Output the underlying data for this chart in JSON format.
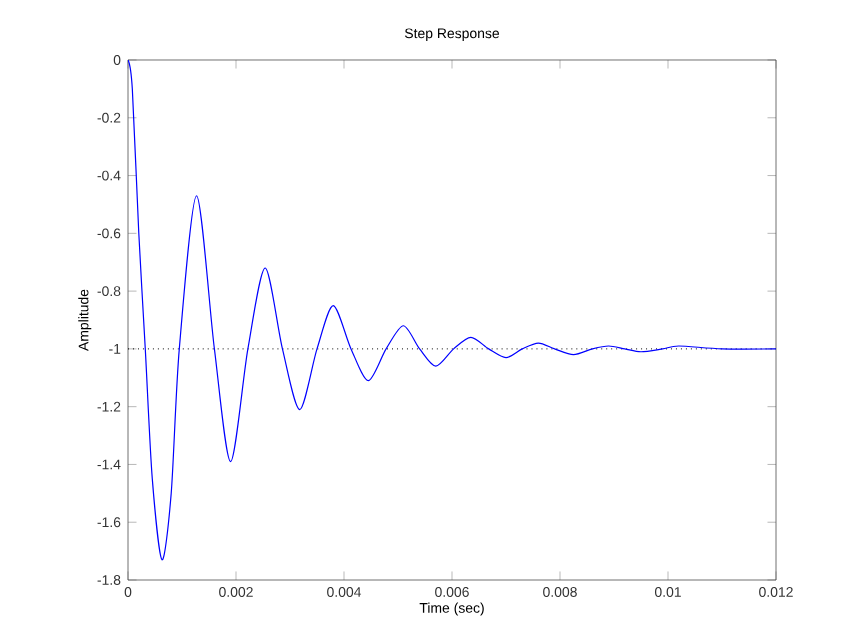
{
  "chart_data": {
    "type": "line",
    "title": "Step Response",
    "xlabel": "Time (sec)",
    "ylabel": "Amplitude",
    "xlim": [
      0,
      0.012
    ],
    "xticks": [
      0,
      0.002,
      0.004,
      0.006,
      0.008,
      0.01,
      0.012
    ],
    "ylim": [
      -1.8,
      0
    ],
    "yticks": [
      -1.8,
      -1.6,
      -1.4,
      -1.2,
      -1,
      -0.8,
      -0.6,
      -0.4,
      -0.2,
      0
    ],
    "grid": false,
    "marker": "none",
    "line_style": "solid",
    "ref_lines": [
      {
        "axis": "y",
        "value": -1,
        "line_style": "dotted",
        "color": "#000000"
      }
    ],
    "series": [
      {
        "color": "#0000ff",
        "x": [
          0,
          8e-05,
          0.0002,
          0.00032,
          0.00045,
          0.00063,
          0.0008,
          0.00095,
          0.00127,
          0.0016,
          0.0019,
          0.00222,
          0.00254,
          0.00286,
          0.00318,
          0.0035,
          0.0038,
          0.00413,
          0.00445,
          0.00478,
          0.0051,
          0.0054,
          0.0057,
          0.00603,
          0.00635,
          0.00668,
          0.007,
          0.0073,
          0.0076,
          0.0079,
          0.00825,
          0.0086,
          0.0089,
          0.0092,
          0.0095,
          0.0099,
          0.0102,
          0.011,
          0.012
        ],
        "values": [
          0,
          -0.1,
          -0.6,
          -1.0,
          -1.45,
          -1.73,
          -1.5,
          -1.0,
          -0.47,
          -1.0,
          -1.39,
          -1.0,
          -0.72,
          -1.0,
          -1.21,
          -1.0,
          -0.85,
          -1.0,
          -1.11,
          -1.0,
          -0.92,
          -1.0,
          -1.06,
          -1.0,
          -0.96,
          -1.0,
          -1.03,
          -1.0,
          -0.98,
          -1.0,
          -1.02,
          -1.0,
          -0.99,
          -1.0,
          -1.01,
          -1.0,
          -0.99,
          -1.0,
          -1.0
        ]
      }
    ]
  }
}
